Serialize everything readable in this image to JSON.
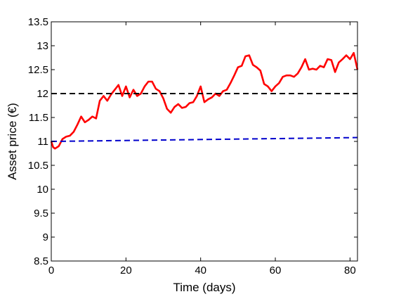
{
  "chart_data": {
    "type": "line",
    "title": "",
    "xlabel": "Time (days)",
    "ylabel": "Asset price (€)",
    "xlim": [
      0,
      82
    ],
    "ylim": [
      8.5,
      13.5
    ],
    "x_ticks": [
      0,
      20,
      40,
      60,
      80
    ],
    "y_ticks": [
      8.5,
      9,
      9.5,
      10,
      10.5,
      11,
      11.5,
      12,
      12.5,
      13,
      13.5
    ],
    "x_tick_labels": [
      "0",
      "20",
      "40",
      "60",
      "80"
    ],
    "y_tick_labels": [
      "8.5",
      "9",
      "9.5",
      "10",
      "10.5",
      "11",
      "11.5",
      "12",
      "12.5",
      "13",
      "13.5"
    ],
    "grid": false,
    "legend": null,
    "series": [
      {
        "style": "solid",
        "color": "#ff0000",
        "points": [
          [
            0,
            11.0
          ],
          [
            0.5,
            10.88
          ],
          [
            1,
            10.85
          ],
          [
            2,
            10.9
          ],
          [
            3,
            11.05
          ],
          [
            4,
            11.1
          ],
          [
            5,
            11.12
          ],
          [
            6,
            11.2
          ],
          [
            7,
            11.35
          ],
          [
            8,
            11.52
          ],
          [
            9,
            11.4
          ],
          [
            10,
            11.45
          ],
          [
            11,
            11.52
          ],
          [
            12,
            11.48
          ],
          [
            13,
            11.85
          ],
          [
            14,
            11.95
          ],
          [
            15,
            11.85
          ],
          [
            16,
            11.98
          ],
          [
            17,
            12.08
          ],
          [
            18,
            12.18
          ],
          [
            19,
            11.95
          ],
          [
            20,
            12.15
          ],
          [
            21,
            11.92
          ],
          [
            22,
            12.08
          ],
          [
            23,
            11.95
          ],
          [
            24,
            12.0
          ],
          [
            25,
            12.15
          ],
          [
            26,
            12.25
          ],
          [
            27,
            12.25
          ],
          [
            28,
            12.1
          ],
          [
            29,
            12.05
          ],
          [
            30,
            11.9
          ],
          [
            31,
            11.68
          ],
          [
            32,
            11.6
          ],
          [
            33,
            11.72
          ],
          [
            34,
            11.78
          ],
          [
            35,
            11.7
          ],
          [
            36,
            11.72
          ],
          [
            37,
            11.8
          ],
          [
            38,
            11.82
          ],
          [
            39,
            11.95
          ],
          [
            40,
            12.15
          ],
          [
            41,
            11.82
          ],
          [
            42,
            11.88
          ],
          [
            43,
            11.92
          ],
          [
            44,
            12.0
          ],
          [
            45,
            11.95
          ],
          [
            46,
            12.05
          ],
          [
            47,
            12.08
          ],
          [
            48,
            12.22
          ],
          [
            49,
            12.38
          ],
          [
            50,
            12.55
          ],
          [
            51,
            12.58
          ],
          [
            52,
            12.78
          ],
          [
            53,
            12.8
          ],
          [
            54,
            12.6
          ],
          [
            55,
            12.55
          ],
          [
            56,
            12.48
          ],
          [
            57,
            12.2
          ],
          [
            58,
            12.15
          ],
          [
            59,
            12.05
          ],
          [
            60,
            12.15
          ],
          [
            61,
            12.22
          ],
          [
            62,
            12.35
          ],
          [
            63,
            12.38
          ],
          [
            64,
            12.38
          ],
          [
            65,
            12.35
          ],
          [
            66,
            12.42
          ],
          [
            67,
            12.55
          ],
          [
            68,
            12.72
          ],
          [
            69,
            12.5
          ],
          [
            70,
            12.52
          ],
          [
            71,
            12.5
          ],
          [
            72,
            12.58
          ],
          [
            73,
            12.55
          ],
          [
            74,
            12.72
          ],
          [
            75,
            12.7
          ],
          [
            76,
            12.45
          ],
          [
            77,
            12.65
          ],
          [
            78,
            12.72
          ],
          [
            79,
            12.8
          ],
          [
            80,
            12.72
          ],
          [
            81,
            12.85
          ],
          [
            82,
            12.5
          ]
        ]
      },
      {
        "style": "dashed",
        "color": "#000000",
        "points": [
          [
            0,
            12.0
          ],
          [
            82,
            12.0
          ]
        ]
      },
      {
        "style": "dashed",
        "color": "#0000cc",
        "points": [
          [
            0,
            11.0
          ],
          [
            82,
            11.08
          ]
        ]
      }
    ]
  }
}
